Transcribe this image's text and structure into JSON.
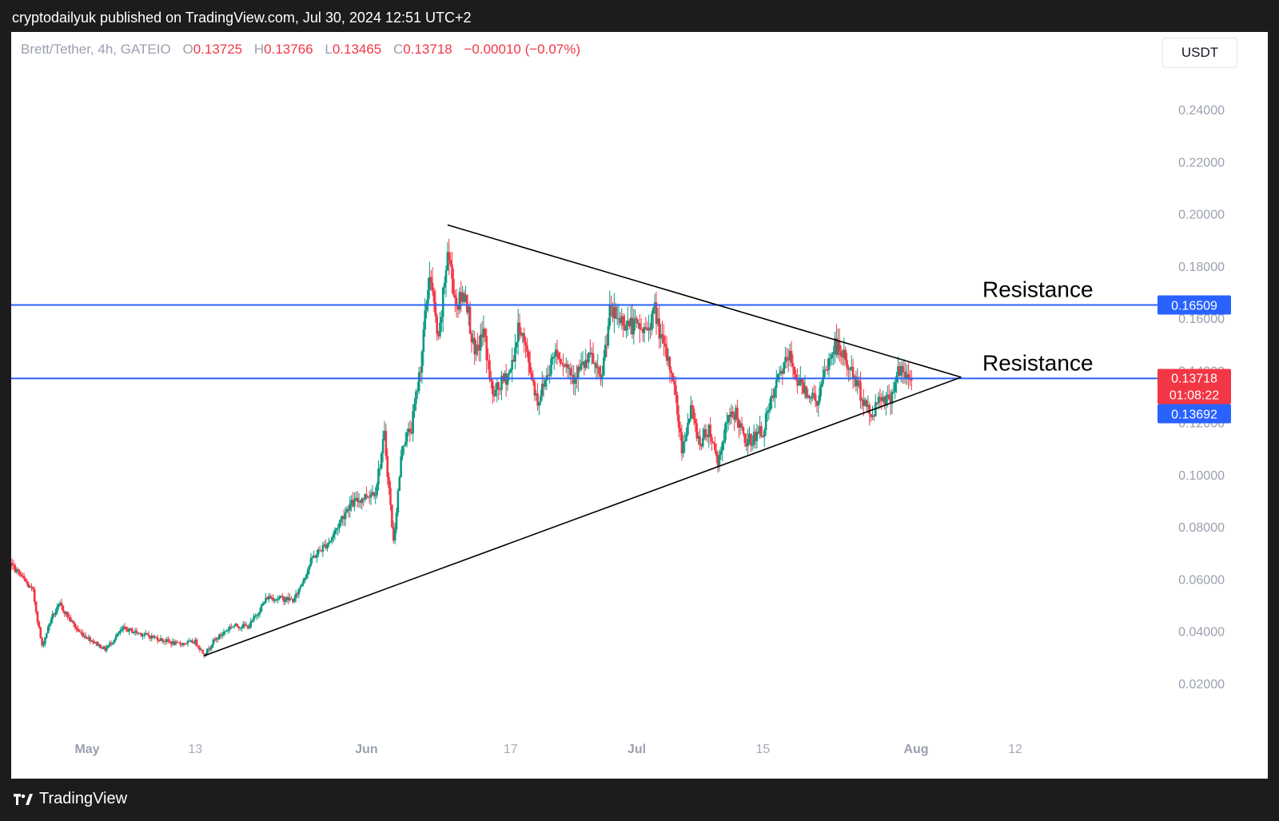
{
  "header": {
    "published_text": "cryptodailyuk published on TradingView.com, Jul 30, 2024 12:51 UTC+2"
  },
  "legend": {
    "symbol": "Brett/Tether, 4h, GATEIO",
    "open_label": "O",
    "open": "0.13725",
    "high_label": "H",
    "high": "0.13766",
    "low_label": "L",
    "low": "0.13465",
    "close_label": "C",
    "close": "0.13718",
    "change": "−0.00010 (−0.07%)"
  },
  "currency_button": "USDT",
  "footer": {
    "logo_icon": "tradingview-logo-icon",
    "logo_text": "TradingView"
  },
  "colors": {
    "up": "#089981",
    "down": "#f23645",
    "level": "#2962ff",
    "trendline": "#000000",
    "price_badge": "#f23645",
    "level_badge": "#2962ff"
  },
  "chart_data": {
    "type": "candlestick",
    "symbol": "Brett/Tether",
    "interval": "4h",
    "exchange": "GATEIO",
    "ylim": [
      0.0,
      0.2514
    ],
    "y_ticks": [
      "0.24000",
      "0.22000",
      "0.20000",
      "0.18000",
      "0.16000",
      "0.14000",
      "0.12000",
      "0.10000",
      "0.08000",
      "0.06000",
      "0.04000",
      "0.02000"
    ],
    "x_ticks": [
      {
        "label": "May",
        "date": "2024-05-01",
        "bold": true
      },
      {
        "label": "13",
        "date": "2024-05-13",
        "bold": false
      },
      {
        "label": "Jun",
        "date": "2024-06-01",
        "bold": true
      },
      {
        "label": "17",
        "date": "2024-06-17",
        "bold": false
      },
      {
        "label": "Jul",
        "date": "2024-07-01",
        "bold": true
      },
      {
        "label": "15",
        "date": "2024-07-15",
        "bold": false
      },
      {
        "label": "Aug",
        "date": "2024-08-01",
        "bold": true
      },
      {
        "label": "12",
        "date": "2024-08-12",
        "bold": false
      }
    ],
    "price_path": [
      [
        "2024-04-21",
        0.069
      ],
      [
        "2024-04-23",
        0.064
      ],
      [
        "2024-04-25",
        0.055
      ],
      [
        "2024-04-26",
        0.034
      ],
      [
        "2024-04-27",
        0.045
      ],
      [
        "2024-04-28",
        0.05
      ],
      [
        "2024-04-30",
        0.04
      ],
      [
        "2024-05-03",
        0.033
      ],
      [
        "2024-05-05",
        0.041
      ],
      [
        "2024-05-08",
        0.038
      ],
      [
        "2024-05-11",
        0.035
      ],
      [
        "2024-05-13",
        0.036
      ],
      [
        "2024-05-14",
        0.031
      ],
      [
        "2024-05-15",
        0.036
      ],
      [
        "2024-05-17",
        0.042
      ],
      [
        "2024-05-19",
        0.042
      ],
      [
        "2024-05-21",
        0.053
      ],
      [
        "2024-05-24",
        0.052
      ],
      [
        "2024-05-26",
        0.068
      ],
      [
        "2024-05-28",
        0.075
      ],
      [
        "2024-05-30",
        0.088
      ],
      [
        "2024-06-02",
        0.094
      ],
      [
        "2024-06-03",
        0.115
      ],
      [
        "2024-06-04",
        0.074
      ],
      [
        "2024-06-05",
        0.112
      ],
      [
        "2024-06-06",
        0.118
      ],
      [
        "2024-06-07",
        0.142
      ],
      [
        "2024-06-08",
        0.178
      ],
      [
        "2024-06-09",
        0.15
      ],
      [
        "2024-06-10",
        0.186
      ],
      [
        "2024-06-11",
        0.165
      ],
      [
        "2024-06-12",
        0.17
      ],
      [
        "2024-06-13",
        0.145
      ],
      [
        "2024-06-14",
        0.155
      ],
      [
        "2024-06-15",
        0.13
      ],
      [
        "2024-06-17",
        0.14
      ],
      [
        "2024-06-18",
        0.158
      ],
      [
        "2024-06-20",
        0.128
      ],
      [
        "2024-06-22",
        0.148
      ],
      [
        "2024-06-24",
        0.138
      ],
      [
        "2024-06-26",
        0.145
      ],
      [
        "2024-06-27",
        0.135
      ],
      [
        "2024-06-28",
        0.162
      ],
      [
        "2024-06-30",
        0.158
      ],
      [
        "2024-07-02",
        0.155
      ],
      [
        "2024-07-03",
        0.163
      ],
      [
        "2024-07-04",
        0.148
      ],
      [
        "2024-07-05",
        0.138
      ],
      [
        "2024-07-06",
        0.11
      ],
      [
        "2024-07-07",
        0.125
      ],
      [
        "2024-07-08",
        0.112
      ],
      [
        "2024-07-09",
        0.118
      ],
      [
        "2024-07-10",
        0.105
      ],
      [
        "2024-07-11",
        0.12
      ],
      [
        "2024-07-12",
        0.124
      ],
      [
        "2024-07-13",
        0.112
      ],
      [
        "2024-07-15",
        0.117
      ],
      [
        "2024-07-17",
        0.14
      ],
      [
        "2024-07-18",
        0.145
      ],
      [
        "2024-07-19",
        0.135
      ],
      [
        "2024-07-20",
        0.132
      ],
      [
        "2024-07-21",
        0.128
      ],
      [
        "2024-07-22",
        0.14
      ],
      [
        "2024-07-23",
        0.15
      ],
      [
        "2024-07-24",
        0.145
      ],
      [
        "2024-07-25",
        0.138
      ],
      [
        "2024-07-26",
        0.13
      ],
      [
        "2024-07-27",
        0.122
      ],
      [
        "2024-07-28",
        0.131
      ],
      [
        "2024-07-29",
        0.128
      ],
      [
        "2024-07-30",
        0.14
      ],
      [
        "2024-07-31",
        0.137
      ]
    ],
    "levels": [
      {
        "value": 0.16509,
        "label": "0.16509",
        "annotation": "Resistance"
      },
      {
        "value": 0.13692,
        "label": "0.13692",
        "annotation": "Resistance"
      }
    ],
    "current_price": {
      "value": 0.13718,
      "label": "0.13718",
      "countdown": "01:08:22"
    },
    "trendlines": [
      {
        "from": [
          "2024-06-10",
          0.1958
        ],
        "to": [
          "2024-08-06",
          0.1374
        ]
      },
      {
        "from": [
          "2024-05-14",
          0.0306
        ],
        "to": [
          "2024-08-06",
          0.1374
        ]
      }
    ]
  }
}
